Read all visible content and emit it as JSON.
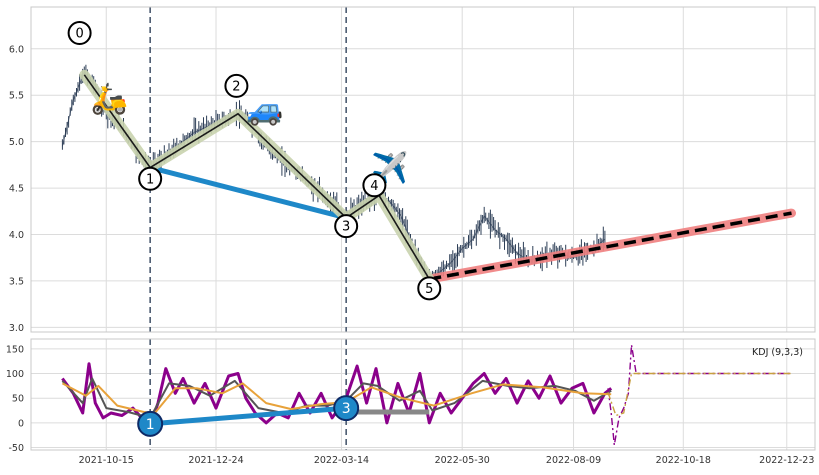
{
  "chart_data": [
    {
      "type": "line",
      "panel": "price",
      "ylim": [
        2.95,
        6.45
      ],
      "yticks": [
        "3.0",
        "3.5",
        "4.0",
        "4.5",
        "5.0",
        "5.5",
        "6.0"
      ],
      "grid": true,
      "vlines": [
        "2021-11-12",
        "2022-03-17"
      ],
      "price_path": [
        {
          "x": "2021-09-17",
          "y": 4.95
        },
        {
          "x": "2021-09-24",
          "y": 5.45
        },
        {
          "x": "2021-10-01",
          "y": 5.75
        },
        {
          "x": "2021-10-08",
          "y": 5.6
        },
        {
          "x": "2021-10-15",
          "y": 5.3
        },
        {
          "x": "2021-10-22",
          "y": 5.2
        },
        {
          "x": "2021-10-29",
          "y": 5.05
        },
        {
          "x": "2021-11-05",
          "y": 4.85
        },
        {
          "x": "2021-11-12",
          "y": 4.72
        },
        {
          "x": "2021-11-19",
          "y": 4.8
        },
        {
          "x": "2021-11-26",
          "y": 4.9
        },
        {
          "x": "2021-12-03",
          "y": 5.0
        },
        {
          "x": "2021-12-10",
          "y": 5.1
        },
        {
          "x": "2021-12-17",
          "y": 5.15
        },
        {
          "x": "2021-12-24",
          "y": 5.2
        },
        {
          "x": "2021-12-31",
          "y": 5.25
        },
        {
          "x": "2022-01-07",
          "y": 5.3
        },
        {
          "x": "2022-01-14",
          "y": 5.2
        },
        {
          "x": "2022-01-21",
          "y": 5.05
        },
        {
          "x": "2022-01-28",
          "y": 4.9
        },
        {
          "x": "2022-02-04",
          "y": 4.8
        },
        {
          "x": "2022-02-11",
          "y": 4.7
        },
        {
          "x": "2022-02-18",
          "y": 4.6
        },
        {
          "x": "2022-02-25",
          "y": 4.5
        },
        {
          "x": "2022-03-04",
          "y": 4.4
        },
        {
          "x": "2022-03-11",
          "y": 4.3
        },
        {
          "x": "2022-03-17",
          "y": 4.2
        },
        {
          "x": "2022-03-24",
          "y": 4.3
        },
        {
          "x": "2022-03-31",
          "y": 4.35
        },
        {
          "x": "2022-04-07",
          "y": 4.42
        },
        {
          "x": "2022-04-14",
          "y": 4.35
        },
        {
          "x": "2022-04-21",
          "y": 4.2
        },
        {
          "x": "2022-04-28",
          "y": 3.9
        },
        {
          "x": "2022-05-05",
          "y": 3.65
        },
        {
          "x": "2022-05-09",
          "y": 3.52
        },
        {
          "x": "2022-05-16",
          "y": 3.6
        },
        {
          "x": "2022-05-23",
          "y": 3.7
        },
        {
          "x": "2022-05-30",
          "y": 3.85
        },
        {
          "x": "2022-06-06",
          "y": 3.95
        },
        {
          "x": "2022-06-13",
          "y": 4.2
        },
        {
          "x": "2022-06-20",
          "y": 4.05
        },
        {
          "x": "2022-06-27",
          "y": 3.95
        },
        {
          "x": "2022-07-04",
          "y": 3.8
        },
        {
          "x": "2022-07-11",
          "y": 3.72
        },
        {
          "x": "2022-07-18",
          "y": 3.75
        },
        {
          "x": "2022-07-25",
          "y": 3.78
        },
        {
          "x": "2022-08-01",
          "y": 3.8
        },
        {
          "x": "2022-08-08",
          "y": 3.75
        },
        {
          "x": "2022-08-15",
          "y": 3.8
        },
        {
          "x": "2022-08-22",
          "y": 3.85
        },
        {
          "x": "2022-08-29",
          "y": 3.95
        }
      ],
      "wave_points": [
        {
          "label": "0",
          "x": "2021-10-01",
          "y": 5.72
        },
        {
          "label": "1",
          "x": "2021-11-12",
          "y": 4.72
        },
        {
          "label": "2",
          "x": "2022-01-07",
          "y": 5.3
        },
        {
          "label": "3",
          "x": "2022-03-17",
          "y": 4.18
        },
        {
          "label": "4",
          "x": "2022-04-07",
          "y": 4.42
        },
        {
          "label": "5",
          "x": "2022-05-09",
          "y": 3.52
        }
      ],
      "label_positions": [
        {
          "label": "0",
          "x": "2021-09-28",
          "y": 6.17
        },
        {
          "label": "1",
          "x": "2021-11-12",
          "y": 4.6
        },
        {
          "label": "2",
          "x": "2022-01-06",
          "y": 5.6
        },
        {
          "label": "3",
          "x": "2022-03-17",
          "y": 4.09
        },
        {
          "label": "4",
          "x": "2022-04-04",
          "y": 4.53
        },
        {
          "label": "5",
          "x": "2022-05-09",
          "y": 3.42
        }
      ],
      "connector_1_3": [
        {
          "x": "2021-11-12",
          "y": 4.72
        },
        {
          "x": "2022-03-17",
          "y": 4.18
        }
      ],
      "trend_line": [
        {
          "x": "2022-05-09",
          "y": 3.52
        },
        {
          "x": "2022-12-26",
          "y": 4.23
        }
      ],
      "icons": [
        {
          "name": "scooter",
          "glyph": "🛵",
          "x": "2021-10-17",
          "y": 5.45
        },
        {
          "name": "car",
          "glyph": "🚙",
          "x": "2022-01-24",
          "y": 5.33
        },
        {
          "name": "airplane",
          "glyph": "✈️",
          "x": "2022-04-14",
          "y": 4.7
        }
      ],
      "colors": {
        "price": "#2e3f57",
        "wave_glow": "#c9d3ae",
        "wave_line": "#1a1a1a",
        "connector": "#1e88c8",
        "trend_glow": "#f08080",
        "trend_line": "#000000",
        "vline": "#4a5a70"
      }
    },
    {
      "type": "line",
      "panel": "kdj",
      "ylim": [
        -55,
        170
      ],
      "yticks": [
        "-50",
        "0",
        "50",
        "100",
        "150"
      ],
      "grid": true,
      "legend_text": "KDJ (9,3,3)",
      "series": [
        {
          "id": "J",
          "color": "#8b008b",
          "points": [
            {
              "x": "2021-09-17",
              "y": 90
            },
            {
              "x": "2021-09-24",
              "y": 60
            },
            {
              "x": "2021-09-30",
              "y": 20
            },
            {
              "x": "2021-10-04",
              "y": 120
            },
            {
              "x": "2021-10-08",
              "y": 40
            },
            {
              "x": "2021-10-13",
              "y": 10
            },
            {
              "x": "2021-10-18",
              "y": 20
            },
            {
              "x": "2021-10-25",
              "y": 15
            },
            {
              "x": "2021-11-01",
              "y": 30
            },
            {
              "x": "2021-11-08",
              "y": 5
            },
            {
              "x": "2021-11-12",
              "y": -5
            },
            {
              "x": "2021-11-17",
              "y": 40
            },
            {
              "x": "2021-11-22",
              "y": 110
            },
            {
              "x": "2021-11-28",
              "y": 60
            },
            {
              "x": "2021-12-03",
              "y": 90
            },
            {
              "x": "2021-12-10",
              "y": 40
            },
            {
              "x": "2021-12-17",
              "y": 80
            },
            {
              "x": "2021-12-24",
              "y": 30
            },
            {
              "x": "2022-01-01",
              "y": 95
            },
            {
              "x": "2022-01-07",
              "y": 100
            },
            {
              "x": "2022-01-12",
              "y": 50
            },
            {
              "x": "2022-01-18",
              "y": 20
            },
            {
              "x": "2022-01-25",
              "y": 0
            },
            {
              "x": "2022-02-01",
              "y": 20
            },
            {
              "x": "2022-02-08",
              "y": 10
            },
            {
              "x": "2022-02-15",
              "y": 60
            },
            {
              "x": "2022-02-22",
              "y": 20
            },
            {
              "x": "2022-03-01",
              "y": 60
            },
            {
              "x": "2022-03-08",
              "y": 10
            },
            {
              "x": "2022-03-17",
              "y": 50
            },
            {
              "x": "2022-03-24",
              "y": 115
            },
            {
              "x": "2022-03-30",
              "y": 40
            },
            {
              "x": "2022-04-05",
              "y": 110
            },
            {
              "x": "2022-04-12",
              "y": 0
            },
            {
              "x": "2022-04-19",
              "y": 80
            },
            {
              "x": "2022-04-26",
              "y": 20
            },
            {
              "x": "2022-05-03",
              "y": 100
            },
            {
              "x": "2022-05-09",
              "y": 0
            },
            {
              "x": "2022-05-16",
              "y": 60
            },
            {
              "x": "2022-05-23",
              "y": 20
            },
            {
              "x": "2022-05-30",
              "y": 50
            },
            {
              "x": "2022-06-06",
              "y": 80
            },
            {
              "x": "2022-06-13",
              "y": 100
            },
            {
              "x": "2022-06-20",
              "y": 60
            },
            {
              "x": "2022-06-27",
              "y": 90
            },
            {
              "x": "2022-07-04",
              "y": 40
            },
            {
              "x": "2022-07-11",
              "y": 85
            },
            {
              "x": "2022-07-18",
              "y": 50
            },
            {
              "x": "2022-07-25",
              "y": 95
            },
            {
              "x": "2022-08-01",
              "y": 40
            },
            {
              "x": "2022-08-08",
              "y": 70
            },
            {
              "x": "2022-08-15",
              "y": 80
            },
            {
              "x": "2022-08-22",
              "y": 20
            },
            {
              "x": "2022-08-29",
              "y": 60
            },
            {
              "x": "2022-09-02",
              "y": 70
            }
          ]
        },
        {
          "id": "K",
          "color": "#555555",
          "points": [
            {
              "x": "2021-09-17",
              "y": 85
            },
            {
              "x": "2021-09-30",
              "y": 40
            },
            {
              "x": "2021-10-06",
              "y": 90
            },
            {
              "x": "2021-10-15",
              "y": 30
            },
            {
              "x": "2021-10-29",
              "y": 22
            },
            {
              "x": "2021-11-12",
              "y": 10
            },
            {
              "x": "2021-11-24",
              "y": 80
            },
            {
              "x": "2021-12-07",
              "y": 75
            },
            {
              "x": "2021-12-20",
              "y": 55
            },
            {
              "x": "2022-01-05",
              "y": 85
            },
            {
              "x": "2022-01-20",
              "y": 30
            },
            {
              "x": "2022-02-05",
              "y": 20
            },
            {
              "x": "2022-02-20",
              "y": 35
            },
            {
              "x": "2022-03-05",
              "y": 35
            },
            {
              "x": "2022-03-17",
              "y": 45
            },
            {
              "x": "2022-03-28",
              "y": 80
            },
            {
              "x": "2022-04-06",
              "y": 75
            },
            {
              "x": "2022-04-20",
              "y": 45
            },
            {
              "x": "2022-05-03",
              "y": 65
            },
            {
              "x": "2022-05-11",
              "y": 25
            },
            {
              "x": "2022-05-25",
              "y": 40
            },
            {
              "x": "2022-06-12",
              "y": 85
            },
            {
              "x": "2022-06-28",
              "y": 75
            },
            {
              "x": "2022-07-12",
              "y": 70
            },
            {
              "x": "2022-07-28",
              "y": 75
            },
            {
              "x": "2022-08-10",
              "y": 65
            },
            {
              "x": "2022-08-22",
              "y": 45
            },
            {
              "x": "2022-09-02",
              "y": 65
            }
          ]
        },
        {
          "id": "D",
          "color": "#e8a23a",
          "points": [
            {
              "x": "2021-09-17",
              "y": 80
            },
            {
              "x": "2021-10-02",
              "y": 55
            },
            {
              "x": "2021-10-10",
              "y": 75
            },
            {
              "x": "2021-10-22",
              "y": 35
            },
            {
              "x": "2021-11-08",
              "y": 22
            },
            {
              "x": "2021-11-15",
              "y": 20
            },
            {
              "x": "2021-11-28",
              "y": 70
            },
            {
              "x": "2021-12-12",
              "y": 70
            },
            {
              "x": "2021-12-28",
              "y": 60
            },
            {
              "x": "2022-01-10",
              "y": 80
            },
            {
              "x": "2022-01-25",
              "y": 40
            },
            {
              "x": "2022-02-10",
              "y": 28
            },
            {
              "x": "2022-03-01",
              "y": 38
            },
            {
              "x": "2022-03-17",
              "y": 42
            },
            {
              "x": "2022-04-02",
              "y": 72
            },
            {
              "x": "2022-04-22",
              "y": 50
            },
            {
              "x": "2022-05-12",
              "y": 35
            },
            {
              "x": "2022-06-05",
              "y": 60
            },
            {
              "x": "2022-06-25",
              "y": 78
            },
            {
              "x": "2022-07-20",
              "y": 72
            },
            {
              "x": "2022-08-15",
              "y": 60
            },
            {
              "x": "2022-09-02",
              "y": 58
            }
          ]
        },
        {
          "id": "J-projection",
          "color": "#8b008b",
          "dashed": true,
          "points": [
            {
              "x": "2022-08-31",
              "y": 70
            },
            {
              "x": "2022-09-02",
              "y": 20
            },
            {
              "x": "2022-09-04",
              "y": -45
            },
            {
              "x": "2022-09-07",
              "y": 10
            },
            {
              "x": "2022-09-10",
              "y": 30
            },
            {
              "x": "2022-09-13",
              "y": 60
            },
            {
              "x": "2022-09-15",
              "y": 158
            },
            {
              "x": "2022-09-18",
              "y": 100
            },
            {
              "x": "2022-12-26",
              "y": 100
            }
          ]
        },
        {
          "id": "K-projection",
          "color": "#c8a040",
          "dashed": true,
          "points": [
            {
              "x": "2022-08-31",
              "y": 62
            },
            {
              "x": "2022-09-05",
              "y": 15
            },
            {
              "x": "2022-09-10",
              "y": 20
            },
            {
              "x": "2022-09-15",
              "y": 100
            },
            {
              "x": "2022-12-26",
              "y": 100
            }
          ]
        }
      ],
      "wave_markers": [
        {
          "label": "1",
          "x": "2021-11-12",
          "y": -2
        },
        {
          "label": "3",
          "x": "2022-03-17",
          "y": 30
        }
      ],
      "marker_connector": [
        {
          "x": "2021-11-12",
          "y": -2
        },
        {
          "x": "2022-03-17",
          "y": 30
        }
      ],
      "marker_extension": [
        {
          "x": "2022-03-17",
          "y": 22
        },
        {
          "x": "2022-05-09",
          "y": 22
        }
      ],
      "colors": {
        "marker_fill": "#1e88c8",
        "marker_edge": "#0d2a66",
        "connector": "#1e88c8",
        "extension": "#888888"
      }
    }
  ],
  "x_axis": {
    "domain": [
      "2021-08-28",
      "2023-01-10"
    ],
    "ticks": [
      "2021-10-15",
      "2021-12-24",
      "2022-03-14",
      "2022-05-30",
      "2022-08-09",
      "2022-10-18",
      "2022-12-23"
    ]
  }
}
